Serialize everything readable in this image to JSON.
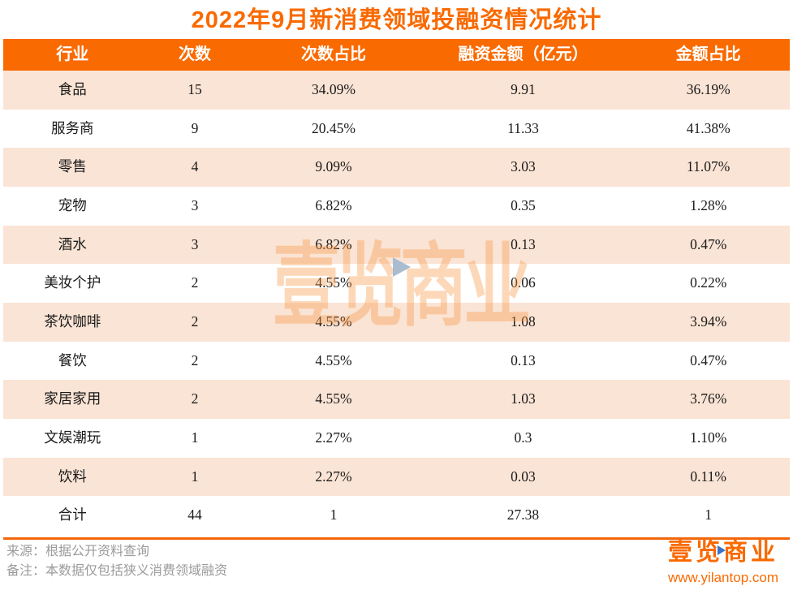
{
  "title": "2022年9月新消费领域投融资情况统计",
  "chart_data": {
    "type": "table",
    "title": "2022年9月新消费领域投融资情况统计",
    "columns": [
      "行业",
      "次数",
      "次数占比",
      "融资金额（亿元）",
      "金额占比"
    ],
    "rows": [
      [
        "食品",
        "15",
        "34.09%",
        "9.91",
        "36.19%"
      ],
      [
        "服务商",
        "9",
        "20.45%",
        "11.33",
        "41.38%"
      ],
      [
        "零售",
        "4",
        "9.09%",
        "3.03",
        "11.07%"
      ],
      [
        "宠物",
        "3",
        "6.82%",
        "0.35",
        "1.28%"
      ],
      [
        "酒水",
        "3",
        "6.82%",
        "0.13",
        "0.47%"
      ],
      [
        "美妆个护",
        "2",
        "4.55%",
        "0.06",
        "0.22%"
      ],
      [
        "茶饮咖啡",
        "2",
        "4.55%",
        "1.08",
        "3.94%"
      ],
      [
        "餐饮",
        "2",
        "4.55%",
        "0.13",
        "0.47%"
      ],
      [
        "家居家用",
        "2",
        "4.55%",
        "1.03",
        "3.76%"
      ],
      [
        "文娱潮玩",
        "1",
        "2.27%",
        "0.3",
        "1.10%"
      ],
      [
        "饮料",
        "1",
        "2.27%",
        "0.03",
        "0.11%"
      ],
      [
        "合计",
        "44",
        "1",
        "27.38",
        "1"
      ]
    ],
    "layout": {
      "header_background": "#F96A00",
      "alternating_row_background": "#FAE4D5",
      "grid": "off"
    }
  },
  "footer": {
    "source_line": "来源：根据公开资料查询",
    "note_line": "备注：本数据仅包括狭义消费领域融资"
  },
  "branding": {
    "logo_text": "壹览商业",
    "website": "www.yilantop.com"
  },
  "watermark": {
    "text": "壹览商业",
    "play_icon": "play-triangle"
  },
  "colors": {
    "accent_orange": "#F96A00",
    "divider_orange": "#F2670C",
    "row_alt_peach": "#FAE4D5",
    "body_text": "#1A1A1A",
    "footer_gray": "#9B9B9B",
    "watermark_orange": "#F89946",
    "watermark_play_blue": "#A9BCD0",
    "logo_play_blue": "#3A72C8"
  }
}
